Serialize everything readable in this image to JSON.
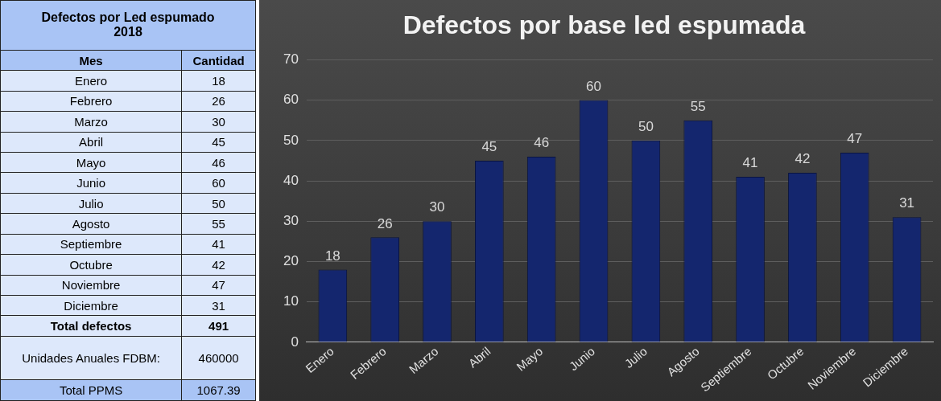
{
  "chart_data": [
    {
      "type": "other",
      "title": "Defectos por Led espumado 2018",
      "xlabel": "Mes",
      "ylabel": "Cantidad",
      "categories": [
        "Enero",
        "Febrero",
        "Marzo",
        "Abril",
        "Mayo",
        "Junio",
        "Julio",
        "Agosto",
        "Septiembre",
        "Octubre",
        "Noviembre",
        "Diciembre"
      ],
      "values": [
        18,
        26,
        30,
        45,
        46,
        60,
        50,
        55,
        41,
        42,
        47,
        31
      ],
      "data_labels": true,
      "annotations": [
        "Total defectos",
        "491",
        "Unidades Anuales FDBM:",
        "460000",
        "Total PPMS",
        "1067.39"
      ]
    },
    {
      "type": "bar",
      "title": "Defectos por base led espumada",
      "categories": [
        "Enero",
        "Febrero",
        "Marzo",
        "Abril",
        "Mayo",
        "Junio",
        "Julio",
        "Agosto",
        "Septiembre",
        "Octubre",
        "Noviembre",
        "Diciembre"
      ],
      "values": [
        18,
        26,
        30,
        45,
        46,
        60,
        50,
        55,
        41,
        42,
        47,
        31
      ],
      "color": "#14266e",
      "ylim": [
        0,
        70
      ],
      "yticks": [
        0,
        10,
        20,
        30,
        40,
        50,
        60,
        70
      ],
      "grid": "y",
      "legend": false,
      "data_labels": true
    }
  ]
}
